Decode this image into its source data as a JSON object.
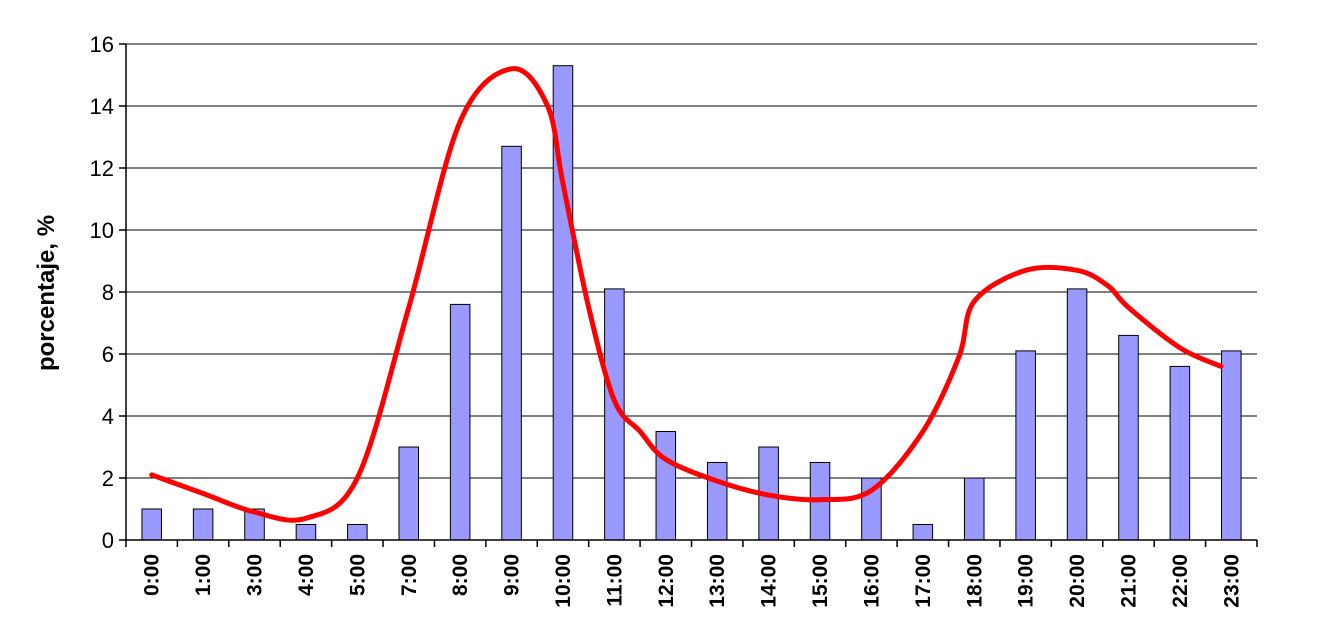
{
  "chart_data": {
    "type": "bar",
    "title": "",
    "xlabel": "",
    "ylabel": "porcentaje, %",
    "ylim": [
      0,
      16
    ],
    "yticks": [
      "0",
      "2",
      "4",
      "6",
      "8",
      "10",
      "12",
      "14",
      "16"
    ],
    "grid": true,
    "legend": "none",
    "categories": [
      "0:00",
      "1:00",
      "3:00",
      "4:00",
      "5:00",
      "7:00",
      "8:00",
      "9:00",
      "10:00",
      "11:00",
      "12:00",
      "13:00",
      "14:00",
      "15:00",
      "16:00",
      "17:00",
      "18:00",
      "19:00",
      "20:00",
      "21:00",
      "22:00",
      "23:00"
    ],
    "series": [
      {
        "type": "bar",
        "color": "#9999ff",
        "values": [
          1.0,
          1.0,
          1.0,
          0.5,
          0.5,
          3.0,
          7.6,
          12.7,
          15.3,
          8.1,
          3.5,
          2.5,
          3.0,
          2.5,
          2.0,
          0.5,
          2.0,
          6.1,
          8.1,
          6.6,
          5.6,
          6.1
        ]
      },
      {
        "type": "line",
        "smooth": true,
        "color": "#ff0000",
        "x": [
          0,
          1,
          2,
          3,
          4,
          5,
          6,
          7,
          7.7,
          8,
          8.5,
          9,
          9.5,
          10,
          11,
          12,
          13,
          14,
          15,
          15.7,
          16,
          17,
          18,
          18.6,
          19,
          20,
          20.8
        ],
        "values": [
          2.1,
          1.5,
          0.9,
          0.7,
          2.0,
          7.5,
          13.5,
          15.2,
          14.0,
          11.5,
          7.5,
          4.5,
          3.5,
          2.6,
          1.9,
          1.45,
          1.3,
          1.6,
          3.5,
          5.9,
          7.7,
          8.7,
          8.7,
          8.2,
          7.5,
          6.2,
          5.6
        ]
      }
    ]
  }
}
